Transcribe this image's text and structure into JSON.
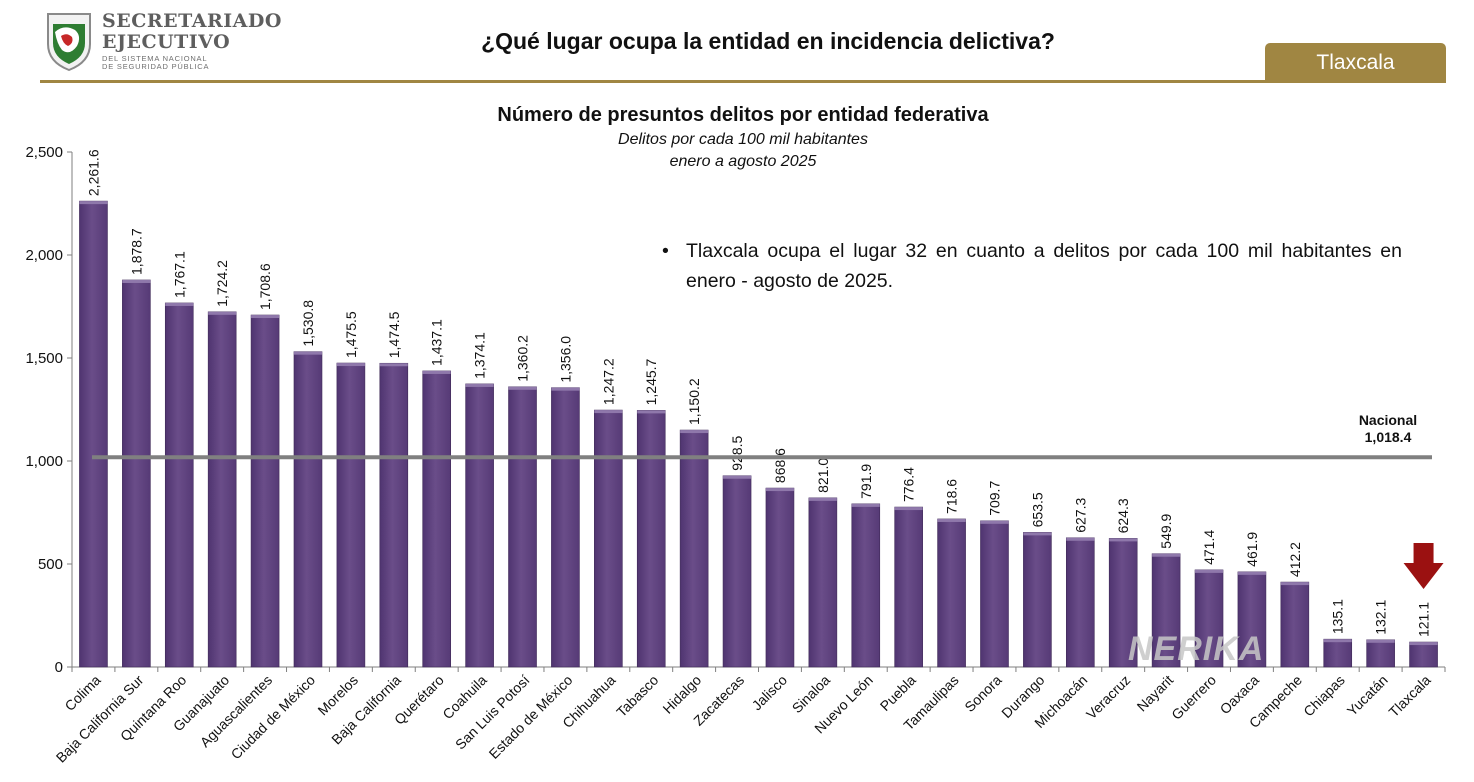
{
  "header": {
    "logo": {
      "line1": "SECRETARIADO",
      "line2": "EJECUTIVO",
      "line3": "DEL SISTEMA NACIONAL",
      "line4": "DE SEGURIDAD PÚBLICA"
    },
    "title": "¿Qué lugar ocupa la entidad en incidencia delictiva?",
    "state": "Tlaxcala",
    "accent_color": "#a08642"
  },
  "note": {
    "bullet": "•",
    "text": "Tlaxcala ocupa el lugar 32 en cuanto a delitos por cada 100 mil habitantes en enero - agosto de 2025."
  },
  "watermark": "NERIKA",
  "chart_data": {
    "type": "bar",
    "title": "Número de presuntos delitos por entidad federativa",
    "subtitle": [
      "Delitos por cada 100 mil habitantes",
      "enero a agosto 2025"
    ],
    "categories": [
      "Colima",
      "Baja California Sur",
      "Quintana Roo",
      "Guanajuato",
      "Aguascalientes",
      "Ciudad de México",
      "Morelos",
      "Baja California",
      "Querétaro",
      "Coahuila",
      "San Luis Potosí",
      "Estado de México",
      "Chihuahua",
      "Tabasco",
      "Hidalgo",
      "Zacatecas",
      "Jalisco",
      "Sinaloa",
      "Nuevo León",
      "Puebla",
      "Tamaulipas",
      "Sonora",
      "Durango",
      "Michoacán",
      "Veracruz",
      "Nayarit",
      "Guerrero",
      "Oaxaca",
      "Campeche",
      "Chiapas",
      "Yucatán",
      "Tlaxcala"
    ],
    "values": [
      2261.6,
      1878.7,
      1767.1,
      1724.2,
      1708.6,
      1530.8,
      1475.5,
      1474.5,
      1437.1,
      1374.1,
      1360.2,
      1356.0,
      1247.2,
      1245.7,
      1150.2,
      928.5,
      868.6,
      821.0,
      791.9,
      776.4,
      718.6,
      709.7,
      653.5,
      627.3,
      624.3,
      549.9,
      471.4,
      461.9,
      412.2,
      135.1,
      132.1,
      121.1
    ],
    "value_labels": [
      "2,261.6",
      "1,878.7",
      "1,767.1",
      "1,724.2",
      "1,708.6",
      "1,530.8",
      "1,475.5",
      "1,474.5",
      "1,437.1",
      "1,374.1",
      "1,360.2",
      "1,356.0",
      "1,247.2",
      "1,245.7",
      "1,150.2",
      "928.5",
      "868.6",
      "821.0",
      "791.9",
      "776.4",
      "718.6",
      "709.7",
      "653.5",
      "627.3",
      "624.3",
      "549.9",
      "471.4",
      "461.9",
      "412.2",
      "135.1",
      "132.1",
      "121.1"
    ],
    "ylim": [
      0,
      2500
    ],
    "yticks": [
      0,
      500,
      1000,
      1500,
      2000,
      2500
    ],
    "ytick_labels": [
      "0",
      "500",
      "1,000",
      "1,500",
      "2,000",
      "2,500"
    ],
    "xlabel": "",
    "ylabel": "",
    "grid": false,
    "reference_line": {
      "label": "Nacional",
      "value": 1018.4,
      "value_label": "1,018.4",
      "color": "#808080"
    },
    "highlight": {
      "category": "Tlaxcala",
      "marker": "down-arrow",
      "color": "#9b1111"
    },
    "bar_color": "#6a4d89"
  }
}
